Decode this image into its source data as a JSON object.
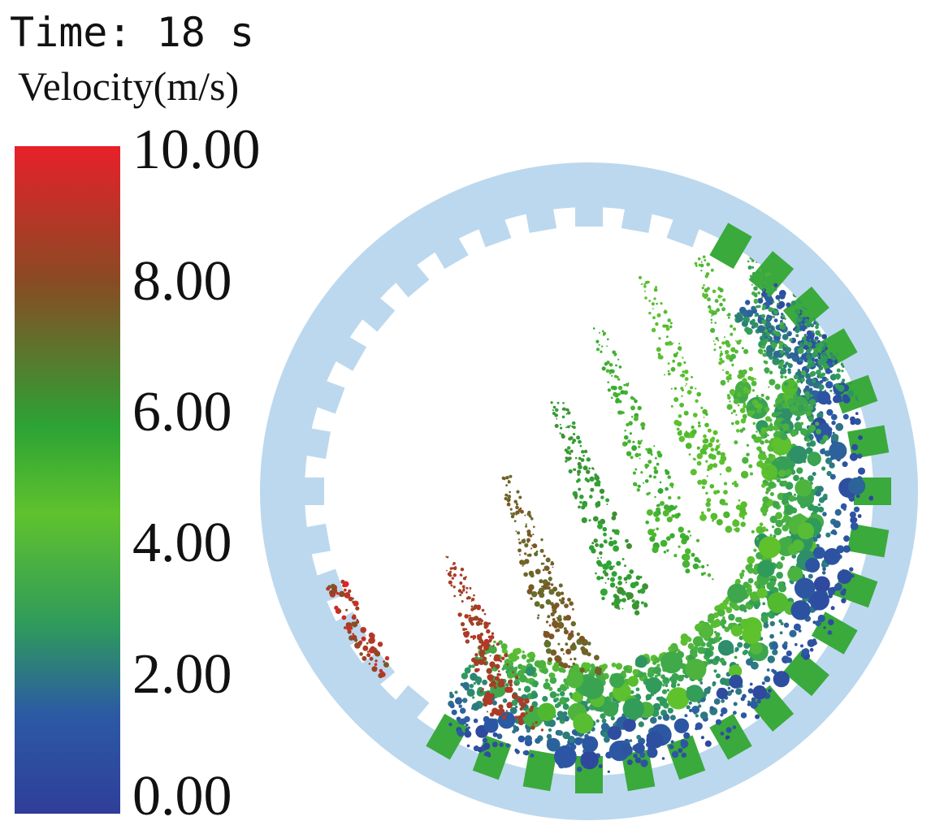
{
  "header": {
    "time_text": "Time: 18 s",
    "quantity_text": "Velocity(m/s)"
  },
  "legend": {
    "ticks": [
      "10.00",
      "8.00",
      "6.00",
      "4.00",
      "2.00",
      "0.00"
    ],
    "min": 0,
    "max": 10,
    "colors": {
      "top": "#e8202a",
      "upper": "#8a4a24",
      "middle": "#2ca335",
      "mid_light": "#5fc22d",
      "lower_mid": "#2e9a5c",
      "low": "#2c5aa4",
      "bottom": "#2f3e9a"
    }
  },
  "simulation": {
    "drum_color": "#bcd8ee",
    "liner_color": "#3aaa3c"
  }
}
